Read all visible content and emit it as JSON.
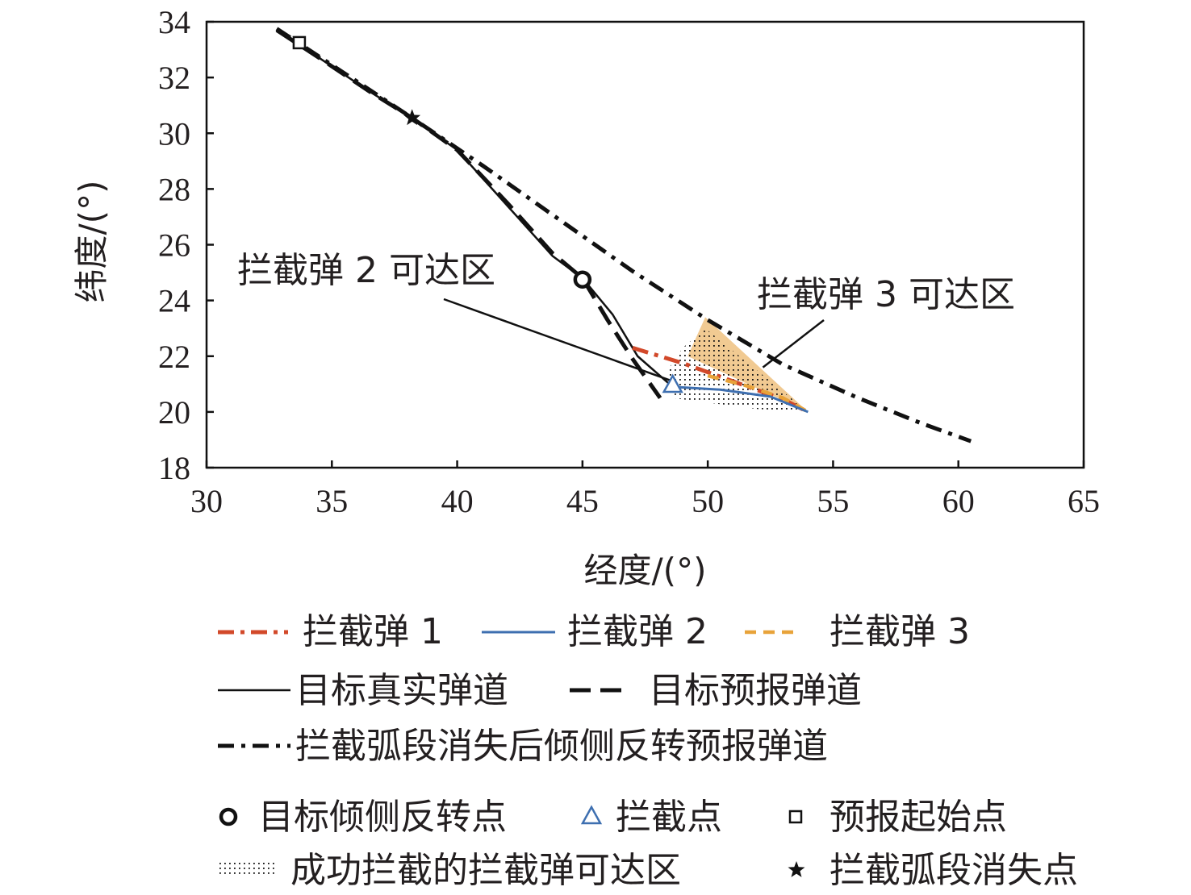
{
  "chart_data": {
    "type": "line",
    "xlabel": "经度/(°)",
    "ylabel": "纬度/(°)",
    "xlim": [
      30,
      65
    ],
    "ylim": [
      18,
      34
    ],
    "xticks": [
      30,
      35,
      40,
      45,
      50,
      55,
      60,
      65
    ],
    "yticks": [
      18,
      20,
      22,
      24,
      26,
      28,
      30,
      32,
      34
    ],
    "grid": false,
    "legend_position": "bottom",
    "colors": {
      "interceptor1": "#d2492a",
      "interceptor2": "#3e6fb0",
      "interceptor3": "#e8a33a",
      "region3_fill": "#f0c486",
      "black": "#111111"
    },
    "series": [
      {
        "name": "目标真实弹道",
        "style": "solid-thin",
        "x": [
          32.8,
          34.5,
          36.5,
          38.2,
          40.0,
          42.0,
          43.8,
          45.0,
          46.2,
          47.2,
          48.6
        ],
        "y": [
          33.7,
          32.7,
          31.5,
          30.55,
          29.4,
          27.4,
          25.6,
          24.8,
          23.5,
          22.0,
          20.9
        ]
      },
      {
        "name": "目标预报弹道",
        "style": "long-dash-thick",
        "x": [
          32.8,
          34.5,
          36.5,
          38.2,
          40.0,
          42.0,
          43.8,
          45.0,
          46.0,
          47.0,
          48.1
        ],
        "y": [
          33.7,
          32.7,
          31.5,
          30.55,
          29.4,
          27.5,
          25.7,
          24.8,
          23.3,
          21.9,
          20.5
        ]
      },
      {
        "name": "拦截弧段消失后倾侧反转预报弹道",
        "style": "dash-dot-thick",
        "x": [
          32.8,
          35.0,
          38.2,
          41.0,
          44.0,
          47.0,
          50.0,
          53.0,
          56.0,
          58.5,
          60.5
        ],
        "y": [
          33.75,
          32.45,
          30.55,
          28.85,
          26.95,
          25.05,
          23.3,
          21.7,
          20.5,
          19.6,
          18.95
        ]
      },
      {
        "name": "拦截弹 1",
        "style": "dash-dot-red",
        "x": [
          47.0,
          49.0,
          51.0,
          53.0,
          54.0
        ],
        "y": [
          22.3,
          21.75,
          21.1,
          20.45,
          20.0
        ]
      },
      {
        "name": "拦截弹 2",
        "style": "solid-blue",
        "x": [
          48.6,
          50.5,
          52.5,
          54.0
        ],
        "y": [
          20.9,
          20.8,
          20.55,
          20.0
        ]
      },
      {
        "name": "拦截弹 3",
        "style": "dash-orange",
        "x": [
          50.0,
          51.5,
          53.0,
          54.0
        ],
        "y": [
          21.3,
          20.95,
          20.5,
          20.0
        ]
      }
    ],
    "regions": [
      {
        "name": "拦截弹 3 可达区",
        "kind": "filled",
        "x": [
          49.2,
          49.9,
          54.0
        ],
        "y": [
          22.0,
          23.4,
          20.0
        ]
      },
      {
        "name": "成功拦截的拦截弹可达区",
        "kind": "dotted",
        "x": [
          48.4,
          49.0,
          49.9,
          54.0,
          52.0,
          48.6
        ],
        "y": [
          21.5,
          22.3,
          23.0,
          20.0,
          20.1,
          20.5
        ]
      }
    ],
    "markers": [
      {
        "name": "目标倾侧反转点",
        "symbol": "circle",
        "x": 45.0,
        "y": 24.75
      },
      {
        "name": "拦截点",
        "symbol": "triangle",
        "x": 48.6,
        "y": 20.95
      },
      {
        "name": "预报起始点",
        "symbol": "square",
        "x": 33.7,
        "y": 33.25
      },
      {
        "name": "拦截弧段消失点",
        "symbol": "star",
        "x": 38.2,
        "y": 30.55
      }
    ],
    "annotations": [
      {
        "text": "拦截弹 2 可达区",
        "pointer_to": [
          48.6,
          21.1
        ]
      },
      {
        "text": "拦截弹 3 可达区",
        "pointer_to": [
          52.2,
          21.6
        ]
      }
    ],
    "legend": [
      [
        "拦截弹 1",
        "拦截弹 2",
        "拦截弹 3"
      ],
      [
        "目标真实弹道",
        "目标预报弹道"
      ],
      [
        "拦截弧段消失后倾侧反转预报弹道"
      ],
      [
        "目标倾侧反转点",
        "拦截点",
        "预报起始点"
      ],
      [
        "成功拦截的拦截弹可达区",
        "拦截弧段消失点"
      ]
    ]
  }
}
